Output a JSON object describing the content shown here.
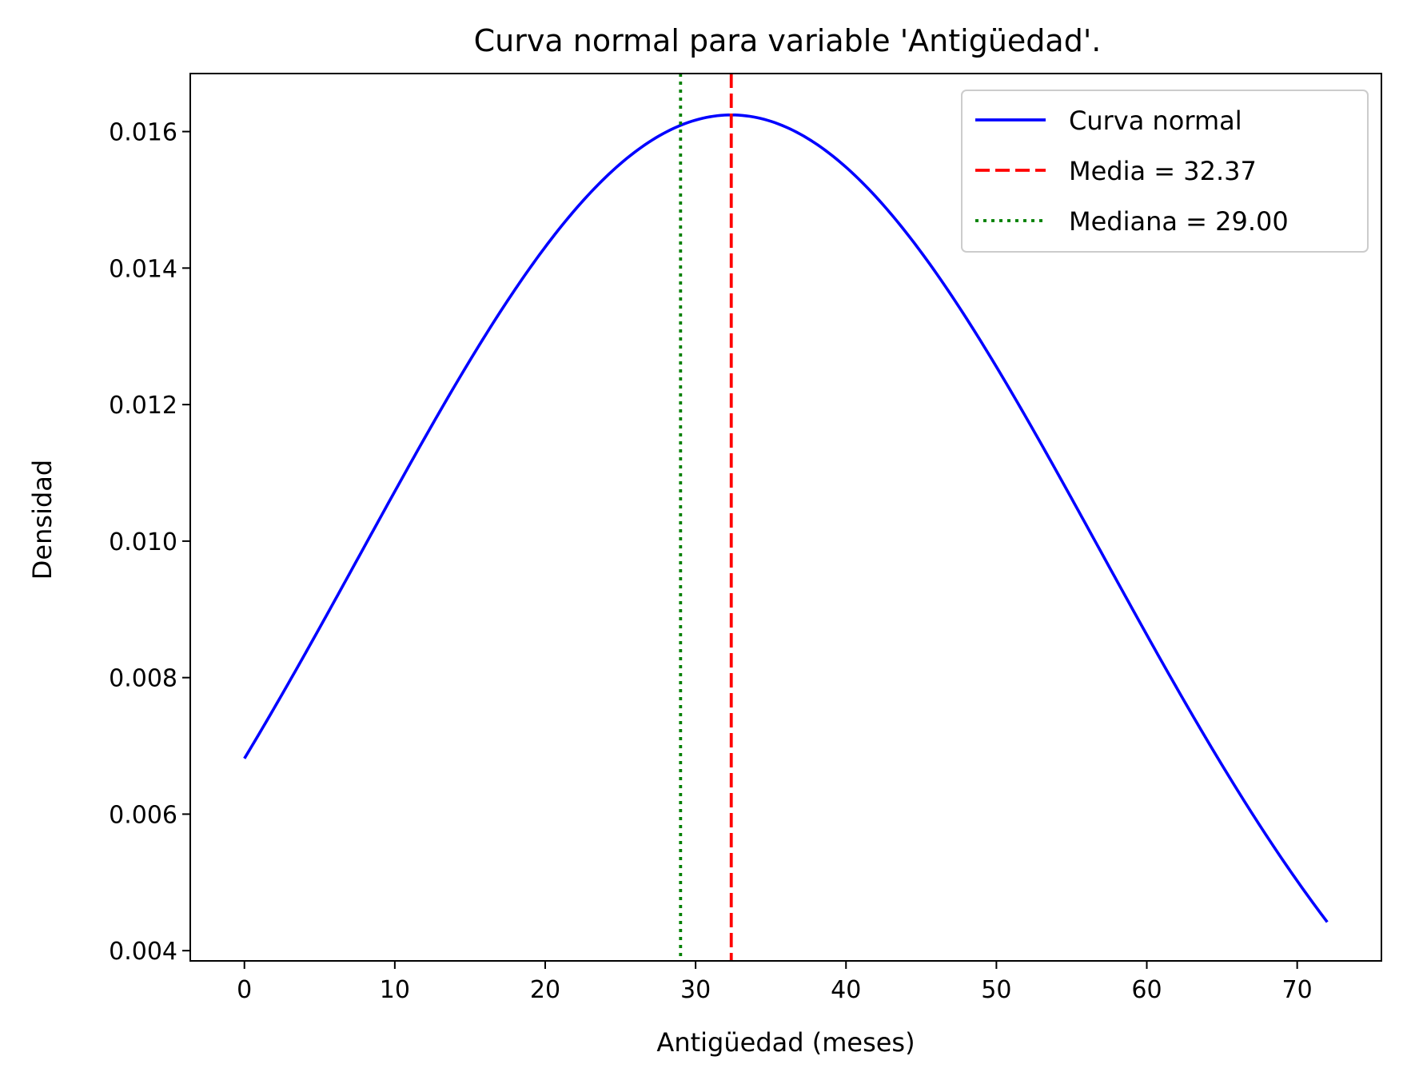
{
  "chart_data": {
    "type": "line",
    "title": "Curva normal para variable 'Antigüedad'.",
    "xlabel": "Antigüedad (meses)",
    "ylabel": "Densidad",
    "xlim": [
      -3.6,
      75.6
    ],
    "ylim": [
      0.00385,
      0.01685
    ],
    "xticks": [
      0,
      10,
      20,
      30,
      40,
      50,
      60,
      70
    ],
    "yticks": [
      0.004,
      0.006,
      0.008,
      0.01,
      0.012,
      0.014,
      0.016
    ],
    "ytick_labels": [
      "0.004",
      "0.006",
      "0.008",
      "0.010",
      "0.012",
      "0.014",
      "0.016"
    ],
    "grid": false,
    "legend_position": "top-right",
    "series": [
      {
        "name": "Curva normal",
        "style": "solid",
        "color": "#0000ff",
        "x": [
          0,
          4,
          8,
          12,
          16,
          20,
          24,
          28,
          32,
          32.37,
          36,
          40,
          44,
          48,
          52,
          56,
          60,
          64,
          68,
          72
        ],
        "y": [
          0.00681,
          0.00833,
          0.00992,
          0.0115,
          0.013,
          0.01432,
          0.01538,
          0.01605,
          0.01626,
          0.01626,
          0.01607,
          0.01545,
          0.01444,
          0.01314,
          0.01166,
          0.01009,
          0.0085,
          0.007,
          0.00563,
          0.00441
        ]
      }
    ],
    "reference_lines": [
      {
        "name": "Media = 32.37",
        "x": 32.37,
        "style": "dashed",
        "color": "#ff0000"
      },
      {
        "name": "Mediana = 29.00",
        "x": 29.0,
        "style": "dotted",
        "color": "#008000"
      }
    ],
    "normal": {
      "mean": 32.37,
      "sd": 24.56
    }
  }
}
